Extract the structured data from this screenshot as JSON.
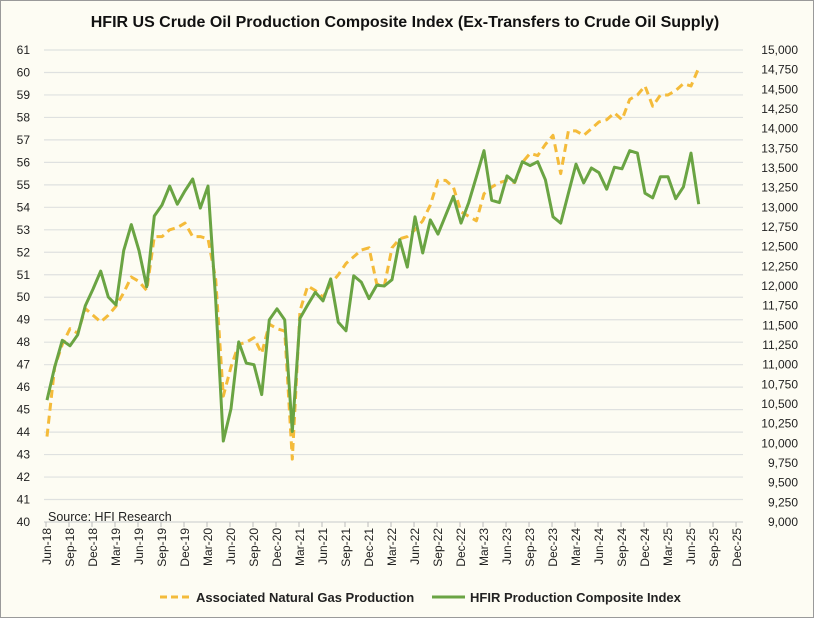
{
  "chart_data": {
    "type": "line",
    "title": "HFIR US Crude Oil Production Composite Index (Ex-Transfers to Crude Oil Supply)",
    "source": "Source: HFI Research",
    "x_start": "Jun-18",
    "x_tick_labels": [
      "Jun-18",
      "Sep-18",
      "Dec-18",
      "Mar-19",
      "Jun-19",
      "Sep-19",
      "Dec-19",
      "Mar-20",
      "Jun-20",
      "Sep-20",
      "Dec-20",
      "Mar-21",
      "Jun-21",
      "Sep-21",
      "Dec-21",
      "Mar-22",
      "Jun-22",
      "Sep-22",
      "Dec-22",
      "Mar-23",
      "Jun-23",
      "Sep-23",
      "Dec-23",
      "Mar-24",
      "Jun-24",
      "Sep-24",
      "Dec-24",
      "Mar-25",
      "Jun-25",
      "Sep-25",
      "Dec-25"
    ],
    "left_axis": {
      "ylim": [
        40,
        61
      ],
      "ticks": [
        "40",
        "41",
        "42",
        "43",
        "44",
        "45",
        "46",
        "47",
        "48",
        "49",
        "50",
        "51",
        "52",
        "53",
        "54",
        "55",
        "56",
        "57",
        "58",
        "59",
        "60",
        "61"
      ]
    },
    "right_axis": {
      "ylim": [
        9000,
        15000
      ],
      "ticks": [
        "9,000",
        "9,250",
        "9,500",
        "9,750",
        "10,000",
        "10,250",
        "10,500",
        "10,750",
        "11,000",
        "11,250",
        "11,500",
        "11,750",
        "12,000",
        "12,250",
        "12,500",
        "12,750",
        "13,000",
        "13,250",
        "13,500",
        "13,750",
        "14,000",
        "14,250",
        "14,500",
        "14,750",
        "15,000"
      ]
    },
    "grid": true,
    "legend_position": "bottom",
    "series": [
      {
        "name": "Associated Natural Gas Production",
        "axis": "left",
        "color": "#f4bb3a",
        "dash": true,
        "values": [
          43.8,
          46.9,
          47.9,
          48.6,
          48.4,
          49.5,
          49.2,
          48.9,
          49.2,
          49.6,
          50.2,
          50.9,
          50.7,
          50.3,
          52.7,
          52.7,
          53.0,
          53.1,
          53.3,
          52.7,
          52.7,
          52.6,
          50.8,
          45.6,
          46.9,
          47.9,
          48.0,
          48.2,
          47.5,
          48.8,
          48.6,
          48.5,
          42.8,
          49.4,
          50.5,
          50.3,
          50.0,
          50.6,
          51.0,
          51.5,
          51.8,
          52.1,
          52.2,
          50.6,
          50.5,
          52.2,
          52.6,
          52.7,
          53.0,
          53.4,
          54.1,
          55.2,
          55.2,
          54.9,
          53.8,
          53.6,
          53.4,
          54.6,
          54.9,
          55.1,
          55.2,
          55.1,
          56.0,
          56.4,
          56.3,
          56.8,
          57.2,
          55.5,
          57.4,
          57.4,
          57.2,
          57.5,
          57.8,
          57.9,
          58.2,
          57.9,
          58.8,
          59.0,
          59.4,
          58.5,
          59.0,
          59.0,
          59.2,
          59.5,
          59.4,
          60.2
        ]
      },
      {
        "name": "HFIR Production Composite Index",
        "axis": "right",
        "color": "#6aa443",
        "dash": false,
        "values": [
          10550,
          10970,
          11310,
          11240,
          11380,
          11750,
          11960,
          12190,
          11860,
          11760,
          12450,
          12780,
          12450,
          11990,
          12890,
          13030,
          13270,
          13040,
          13210,
          13360,
          12990,
          13270,
          11820,
          10030,
          10440,
          11290,
          11020,
          11000,
          10620,
          11570,
          11710,
          11570,
          10150,
          11590,
          11760,
          11920,
          11810,
          12090,
          11540,
          11430,
          12130,
          12050,
          11840,
          12010,
          12000,
          12080,
          12590,
          12240,
          12880,
          12420,
          12840,
          12660,
          12900,
          13140,
          12800,
          13060,
          13390,
          13720,
          13090,
          13060,
          13400,
          13320,
          13580,
          13530,
          13580,
          13350,
          12880,
          12800,
          13180,
          13550,
          13310,
          13500,
          13440,
          13230,
          13510,
          13490,
          13720,
          13690,
          13180,
          13120,
          13390,
          13390,
          13110,
          13260,
          13690,
          13040
        ]
      }
    ]
  }
}
